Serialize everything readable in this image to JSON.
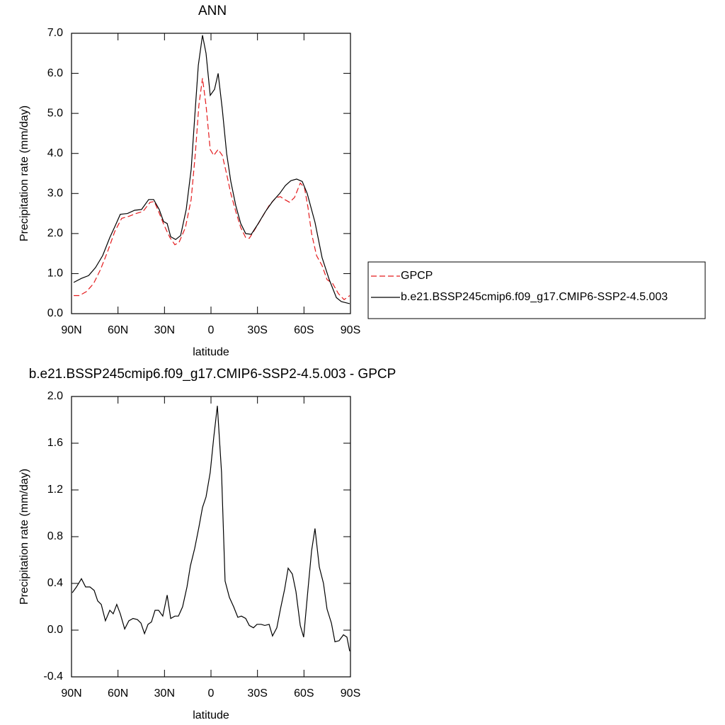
{
  "chart_data": [
    {
      "type": "line",
      "title": "ANN",
      "xlabel": "latitude",
      "ylabel": "Precipitation rate (mm/day)",
      "xlim": [
        90,
        -90
      ],
      "xticks": [
        {
          "value": 90,
          "label": "90N"
        },
        {
          "value": 60,
          "label": "60N"
        },
        {
          "value": 30,
          "label": "30N"
        },
        0,
        {
          "value": -30,
          "label": "30S"
        },
        {
          "value": -60,
          "label": "60S"
        },
        {
          "value": -90,
          "label": "90S"
        }
      ],
      "ylim": [
        0,
        7
      ],
      "yticks": [
        {
          "value": 0,
          "label": "0.0"
        },
        {
          "value": 1,
          "label": "1.0"
        },
        {
          "value": 2,
          "label": "2.0"
        },
        {
          "value": 3,
          "label": "3.0"
        },
        {
          "value": 4,
          "label": "4.0"
        },
        {
          "value": 5,
          "label": "5.0"
        },
        {
          "value": 6,
          "label": "6.0"
        },
        {
          "value": 7,
          "label": "7.0"
        }
      ],
      "legend": "right",
      "series": [
        {
          "name": "GPCP",
          "color": "#e41a1c",
          "style": "dashed",
          "x": [
            88.6,
            85.0,
            80.4,
            75.8,
            71.3,
            66.7,
            62.1,
            57.6,
            53.0,
            48.4,
            43.9,
            39.3,
            36.6,
            33.8,
            30.2,
            26.5,
            23.3,
            20.6,
            16.5,
            12.8,
            10.1,
            7.8,
            5.5,
            3.2,
            0.5,
            -1.8,
            -4.6,
            -7.3,
            -10.0,
            -12.8,
            -16.0,
            -19.2,
            -22.4,
            -24.7,
            -28.3,
            -32.9,
            -37.5,
            -42.0,
            -44.8,
            -47.5,
            -50.7,
            -53.9,
            -57.6,
            -60.3,
            -62.6,
            -64.9,
            -68.1,
            -71.7,
            -74.9,
            -78.6,
            -82.2,
            -85.9,
            -89.5
          ],
          "values": [
            0.45,
            0.45,
            0.55,
            0.75,
            1.1,
            1.55,
            2.05,
            2.38,
            2.43,
            2.5,
            2.55,
            2.78,
            2.8,
            2.55,
            2.2,
            1.9,
            1.72,
            1.78,
            2.15,
            2.85,
            4.0,
            5.2,
            5.88,
            5.2,
            4.1,
            3.95,
            4.1,
            3.95,
            3.5,
            3.0,
            2.55,
            2.15,
            1.9,
            1.88,
            2.1,
            2.4,
            2.7,
            2.9,
            2.92,
            2.85,
            2.78,
            2.9,
            3.26,
            3.15,
            2.65,
            2.0,
            1.45,
            1.2,
            0.85,
            0.75,
            0.5,
            0.35,
            0.45
          ]
        },
        {
          "name": "b.e21.BSSP245cmip6.f09_g17.CMIP6-SSP2-4.5.003",
          "color": "#000000",
          "style": "solid",
          "x": [
            88.6,
            83.6,
            79.0,
            74.5,
            69.9,
            65.3,
            61.7,
            58.5,
            53.9,
            49.3,
            44.8,
            40.2,
            37.0,
            33.4,
            30.6,
            28.3,
            26.0,
            22.8,
            19.6,
            16.0,
            12.8,
            10.5,
            8.2,
            5.5,
            3.2,
            0.5,
            -2.3,
            -4.6,
            -7.3,
            -10.1,
            -12.8,
            -16.0,
            -19.2,
            -22.4,
            -26.0,
            -29.7,
            -35.2,
            -39.7,
            -44.3,
            -48.0,
            -51.6,
            -55.3,
            -58.9,
            -62.1,
            -67.1,
            -71.7,
            -76.3,
            -80.9,
            -84.1,
            -89.5
          ],
          "values": [
            0.78,
            0.88,
            0.95,
            1.15,
            1.45,
            1.9,
            2.2,
            2.48,
            2.5,
            2.58,
            2.6,
            2.85,
            2.85,
            2.6,
            2.3,
            2.25,
            1.92,
            1.85,
            1.95,
            2.6,
            3.6,
            4.9,
            6.2,
            6.95,
            6.5,
            5.45,
            5.6,
            6.0,
            5.1,
            4.0,
            3.3,
            2.7,
            2.25,
            2.0,
            1.98,
            2.2,
            2.55,
            2.8,
            3.0,
            3.2,
            3.32,
            3.36,
            3.3,
            3.0,
            2.28,
            1.4,
            0.85,
            0.4,
            0.3,
            0.25
          ]
        }
      ]
    },
    {
      "type": "line",
      "title": "b.e21.BSSP245cmip6.f09_g17.CMIP6-SSP2-4.5.003 - GPCP",
      "xlabel": "latitude",
      "ylabel": "Precipitation rate (mm/day)",
      "xlim": [
        90,
        -90
      ],
      "xticks": [
        {
          "value": 90,
          "label": "90N"
        },
        {
          "value": 60,
          "label": "60N"
        },
        {
          "value": 30,
          "label": "30N"
        },
        0,
        {
          "value": -30,
          "label": "30S"
        },
        {
          "value": -60,
          "label": "60S"
        },
        {
          "value": -90,
          "label": "90S"
        }
      ],
      "ylim": [
        -0.4,
        2.0
      ],
      "yticks": [
        -0.4,
        {
          "value": 0,
          "label": "0.0"
        },
        0.4,
        0.8,
        1.2,
        1.6,
        {
          "value": 2,
          "label": "2.0"
        }
      ],
      "series": [
        {
          "color": "#000000",
          "style": "solid",
          "x": [
            89.5,
            86.8,
            83.6,
            80.9,
            78.1,
            75.4,
            73.1,
            70.8,
            68.1,
            65.3,
            63.1,
            60.8,
            58.5,
            55.7,
            53.0,
            50.3,
            47.5,
            45.2,
            42.9,
            40.6,
            38.4,
            36.1,
            33.8,
            31.1,
            28.3,
            26.0,
            23.3,
            21.0,
            18.3,
            15.5,
            13.3,
            10.5,
            7.8,
            5.5,
            3.2,
            0.5,
            -1.8,
            -4.1,
            -6.8,
            -9.1,
            -11.9,
            -14.6,
            -17.3,
            -19.6,
            -22.4,
            -24.7,
            -27.4,
            -29.7,
            -32.4,
            -34.7,
            -37.5,
            -39.7,
            -42.5,
            -44.8,
            -47.5,
            -49.8,
            -52.5,
            -54.8,
            -57.6,
            -59.8,
            -62.6,
            -64.9,
            -67.1,
            -69.9,
            -72.6,
            -74.9,
            -77.7,
            -80.0,
            -82.7,
            -85.5,
            -87.7,
            -89.5
          ],
          "values": [
            0.32,
            0.37,
            0.44,
            0.37,
            0.37,
            0.34,
            0.25,
            0.22,
            0.08,
            0.17,
            0.14,
            0.22,
            0.14,
            0.01,
            0.08,
            0.1,
            0.09,
            0.06,
            -0.03,
            0.05,
            0.07,
            0.17,
            0.17,
            0.12,
            0.3,
            0.1,
            0.12,
            0.12,
            0.2,
            0.37,
            0.55,
            0.7,
            0.88,
            1.05,
            1.14,
            1.35,
            1.65,
            1.92,
            1.35,
            0.42,
            0.28,
            0.2,
            0.11,
            0.12,
            0.1,
            0.04,
            0.02,
            0.05,
            0.05,
            0.04,
            0.05,
            -0.05,
            0.02,
            0.18,
            0.35,
            0.53,
            0.48,
            0.33,
            0.04,
            -0.06,
            0.35,
            0.68,
            0.87,
            0.54,
            0.4,
            0.18,
            0.06,
            -0.1,
            -0.09,
            -0.04,
            -0.06,
            -0.18
          ]
        }
      ]
    }
  ]
}
